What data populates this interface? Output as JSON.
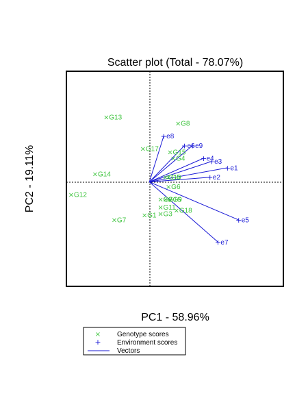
{
  "chart_data": {
    "type": "scatter",
    "title": "Scatter plot (Total - 78.07%)",
    "xlabel": "PC1 - 58.96%",
    "ylabel": "PC2 - 19.11%",
    "xlim": [
      -2.6,
      4.2
    ],
    "ylim": [
      -3.3,
      3.5
    ],
    "grid": false,
    "reference_lines": {
      "x": 0,
      "y": 0
    },
    "legend": {
      "position": "bottom-left",
      "entries": [
        {
          "label": "Genotype scores",
          "marker": "x",
          "color": "#3ec43e"
        },
        {
          "label": "Environment scores",
          "marker": "+",
          "color": "#1a1ad6"
        },
        {
          "label": "Vectors",
          "marker": "line",
          "color": "#1a1ad6"
        }
      ]
    },
    "series": [
      {
        "name": "Genotype scores",
        "marker": "x",
        "color": "#3ec43e",
        "points": [
          {
            "label": "G1",
            "x": -0.15,
            "y": -1.05
          },
          {
            "label": "G2",
            "x": 0.35,
            "y": -0.55
          },
          {
            "label": "G3",
            "x": 0.35,
            "y": -1.0
          },
          {
            "label": "G4",
            "x": 0.75,
            "y": 0.75
          },
          {
            "label": "G5",
            "x": 0.6,
            "y": 0.15
          },
          {
            "label": "G6",
            "x": 0.6,
            "y": -0.15
          },
          {
            "label": "G7",
            "x": -1.1,
            "y": -1.2
          },
          {
            "label": "G8",
            "x": 0.9,
            "y": 1.85
          },
          {
            "label": "G9",
            "x": 0.65,
            "y": -0.55
          },
          {
            "label": "G10",
            "x": 0.5,
            "y": 0.15
          },
          {
            "label": "G11",
            "x": 0.35,
            "y": -0.8
          },
          {
            "label": "G12",
            "x": -2.45,
            "y": -0.4
          },
          {
            "label": "G13",
            "x": -1.35,
            "y": 2.05
          },
          {
            "label": "G14",
            "x": -1.7,
            "y": 0.25
          },
          {
            "label": "G15",
            "x": 0.65,
            "y": 0.95
          },
          {
            "label": "G16",
            "x": 0.5,
            "y": -0.55
          },
          {
            "label": "G17",
            "x": -0.2,
            "y": 1.05
          },
          {
            "label": "G18",
            "x": 0.85,
            "y": -0.9
          }
        ]
      },
      {
        "name": "Environment scores",
        "marker": "+",
        "color": "#1a1ad6",
        "points": [
          {
            "label": "e1",
            "x": 2.45,
            "y": 0.45
          },
          {
            "label": "e2",
            "x": 1.9,
            "y": 0.15
          },
          {
            "label": "e3",
            "x": 1.95,
            "y": 0.65
          },
          {
            "label": "e4",
            "x": 1.7,
            "y": 0.75
          },
          {
            "label": "e5",
            "x": 2.8,
            "y": -1.2
          },
          {
            "label": "e6",
            "x": 1.1,
            "y": 1.15
          },
          {
            "label": "e7",
            "x": 2.15,
            "y": -1.9
          },
          {
            "label": "e8",
            "x": 0.45,
            "y": 1.45
          },
          {
            "label": "e9",
            "x": 1.35,
            "y": 1.15
          }
        ]
      }
    ]
  }
}
